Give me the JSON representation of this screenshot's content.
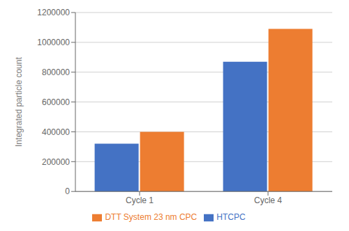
{
  "chart_data": {
    "type": "bar",
    "categories": [
      "Cycle 1",
      "Cycle 4"
    ],
    "series": [
      {
        "name": "HTCPC",
        "color": "#4472C4",
        "values": [
          320000,
          870000
        ]
      },
      {
        "name": "DTT System 23 nm CPC",
        "color": "#ED7D31",
        "values": [
          400000,
          1090000
        ]
      }
    ],
    "ylabel": "Integrated particle count",
    "ylim": [
      0,
      1200000
    ],
    "yticks": [
      0,
      200000,
      400000,
      600000,
      800000,
      1000000,
      1200000
    ],
    "grid": true,
    "legend": "bottom"
  }
}
